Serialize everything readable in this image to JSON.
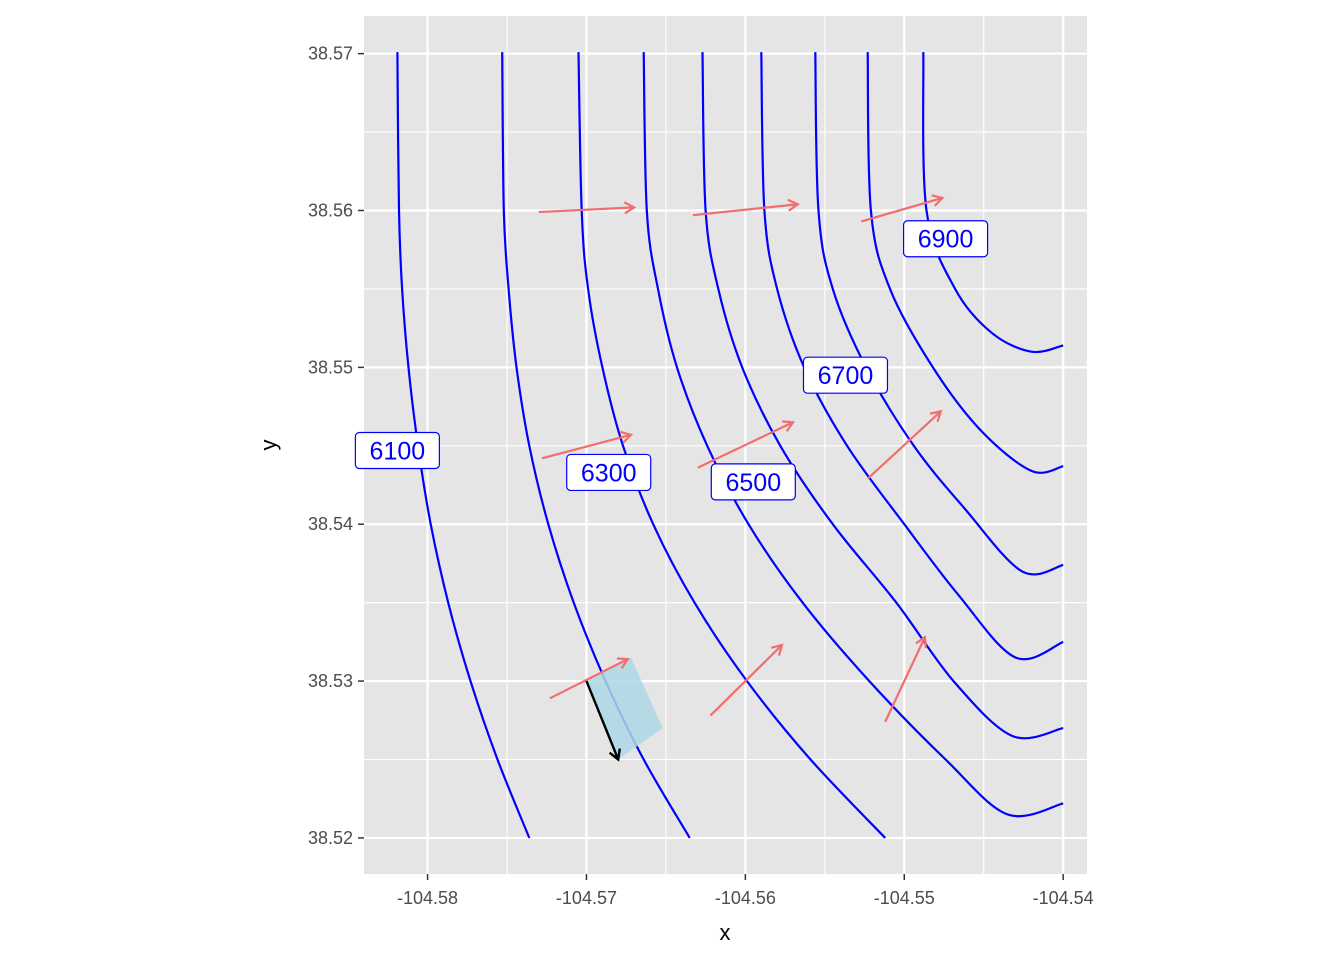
{
  "chart_data": {
    "type": "contour",
    "xlabel": "x",
    "ylabel": "y",
    "xlim": [
      -104.584,
      -104.5385
    ],
    "ylim": [
      38.5177,
      38.5724
    ],
    "x_ticks": [
      -104.58,
      -104.57,
      -104.56,
      -104.55,
      -104.54
    ],
    "x_tick_labels": [
      "-104.58",
      "-104.57",
      "-104.56",
      "-104.55",
      "-104.54"
    ],
    "y_ticks": [
      38.52,
      38.53,
      38.54,
      38.55,
      38.56,
      38.57
    ],
    "y_tick_labels": [
      "38.52",
      "38.53",
      "38.54",
      "38.55",
      "38.56",
      "38.57"
    ],
    "grid": true,
    "colors": {
      "panel": "#e5e5e5",
      "grid": "#ffffff",
      "contour": "#0000ff",
      "gradient_arrow": "#f26e6e",
      "highlight_polygon": "#add8e6",
      "path_arrow": "#000000"
    },
    "contours": [
      {
        "level": "6100",
        "points": [
          [
            -104.5819,
            38.5701
          ],
          [
            -104.5818,
            38.56
          ],
          [
            -104.5816,
            38.555
          ],
          [
            -104.5812,
            38.55
          ],
          [
            -104.5806,
            38.545
          ],
          [
            -104.5798,
            38.54
          ],
          [
            -104.5787,
            38.535
          ],
          [
            -104.5773,
            38.53
          ],
          [
            -104.5756,
            38.525
          ],
          [
            -104.5736,
            38.52
          ]
        ]
      },
      {
        "level": "",
        "points": [
          [
            -104.5753,
            38.5701
          ],
          [
            -104.5752,
            38.56
          ],
          [
            -104.5749,
            38.555
          ],
          [
            -104.5744,
            38.55
          ],
          [
            -104.5736,
            38.545
          ],
          [
            -104.5724,
            38.54
          ],
          [
            -104.5708,
            38.535
          ],
          [
            -104.5688,
            38.53
          ],
          [
            -104.5664,
            38.525
          ],
          [
            -104.5635,
            38.52
          ]
        ]
      },
      {
        "level": "6300",
        "points": [
          [
            -104.5705,
            38.5701
          ],
          [
            -104.5703,
            38.56
          ],
          [
            -104.5699,
            38.555
          ],
          [
            -104.569,
            38.55
          ],
          [
            -104.5677,
            38.545
          ],
          [
            -104.5658,
            38.54
          ],
          [
            -104.5632,
            38.535
          ],
          [
            -104.5599,
            38.53
          ],
          [
            -104.5559,
            38.525
          ],
          [
            -104.5512,
            38.52
          ]
        ]
      },
      {
        "level": "",
        "points": [
          [
            -104.5664,
            38.5701
          ],
          [
            -104.5662,
            38.56
          ],
          [
            -104.5655,
            38.555
          ],
          [
            -104.5643,
            38.55
          ],
          [
            -104.5624,
            38.545
          ],
          [
            -104.5598,
            38.54
          ],
          [
            -104.5564,
            38.535
          ],
          [
            -104.5522,
            38.53
          ],
          [
            -104.5474,
            38.525
          ],
          [
            -104.5435,
            38.5215
          ],
          [
            -104.54,
            38.5222
          ]
        ]
      },
      {
        "level": "6500",
        "points": [
          [
            -104.5627,
            38.5701
          ],
          [
            -104.5625,
            38.56
          ],
          [
            -104.5617,
            38.555
          ],
          [
            -104.5602,
            38.55
          ],
          [
            -104.5578,
            38.545
          ],
          [
            -104.5545,
            38.54
          ],
          [
            -104.5505,
            38.535
          ],
          [
            -104.5469,
            38.53
          ],
          [
            -104.5432,
            38.5265
          ],
          [
            -104.54,
            38.527
          ]
        ]
      },
      {
        "level": "",
        "points": [
          [
            -104.559,
            38.5701
          ],
          [
            -104.5588,
            38.56
          ],
          [
            -104.558,
            38.555
          ],
          [
            -104.5563,
            38.55
          ],
          [
            -104.5536,
            38.545
          ],
          [
            -104.55,
            38.54
          ],
          [
            -104.5466,
            38.5355
          ],
          [
            -104.543,
            38.5315
          ],
          [
            -104.54,
            38.5325
          ]
        ]
      },
      {
        "level": "6700",
        "points": [
          [
            -104.5556,
            38.5701
          ],
          [
            -104.5554,
            38.56
          ],
          [
            -104.5545,
            38.555
          ],
          [
            -104.5524,
            38.55
          ],
          [
            -104.5494,
            38.545
          ],
          [
            -104.5462,
            38.541
          ],
          [
            -104.5426,
            38.537
          ],
          [
            -104.54,
            38.5374
          ]
        ]
      },
      {
        "level": "",
        "points": [
          [
            -104.5523,
            38.5701
          ],
          [
            -104.5521,
            38.56
          ],
          [
            -104.5509,
            38.555
          ],
          [
            -104.5482,
            38.55
          ],
          [
            -104.5452,
            38.546
          ],
          [
            -104.542,
            38.5434
          ],
          [
            -104.54,
            38.5437
          ]
        ]
      },
      {
        "level": "6900",
        "points": [
          [
            -104.5488,
            38.5701
          ],
          [
            -104.5486,
            38.56
          ],
          [
            -104.5468,
            38.555
          ],
          [
            -104.5445,
            38.5522
          ],
          [
            -104.542,
            38.551
          ],
          [
            -104.54,
            38.5514
          ]
        ]
      }
    ],
    "contour_labels": [
      {
        "text": "6100",
        "x": -104.5819,
        "y": 38.5447
      },
      {
        "text": "6300",
        "x": -104.5686,
        "y": 38.5433
      },
      {
        "text": "6500",
        "x": -104.5595,
        "y": 38.5427
      },
      {
        "text": "6700",
        "x": -104.5537,
        "y": 38.5495
      },
      {
        "text": "6900",
        "x": -104.5474,
        "y": 38.5582
      }
    ],
    "gradient_arrows": [
      {
        "x": -104.573,
        "y": 38.5599,
        "xend": -104.567,
        "yend": 38.5602
      },
      {
        "x": -104.5633,
        "y": 38.5597,
        "xend": -104.5567,
        "yend": 38.5604
      },
      {
        "x": -104.5527,
        "y": 38.5593,
        "xend": -104.5476,
        "yend": 38.5608
      },
      {
        "x": -104.5728,
        "y": 38.5442,
        "xend": -104.5672,
        "yend": 38.5457
      },
      {
        "x": -104.563,
        "y": 38.5436,
        "xend": -104.557,
        "yend": 38.5465
      },
      {
        "x": -104.5523,
        "y": 38.5429,
        "xend": -104.5477,
        "yend": 38.5472
      },
      {
        "x": -104.5723,
        "y": 38.5289,
        "xend": -104.5674,
        "yend": 38.5314
      },
      {
        "x": -104.5622,
        "y": 38.5278,
        "xend": -104.5577,
        "yend": 38.5323
      },
      {
        "x": -104.5512,
        "y": 38.5274,
        "xend": -104.5487,
        "yend": 38.5328
      }
    ],
    "highlight_polygon": [
      [
        -104.57,
        38.53
      ],
      [
        -104.5672,
        38.5315
      ],
      [
        -104.5652,
        38.527
      ],
      [
        -104.568,
        38.525
      ]
    ],
    "path_arrow": {
      "x": -104.57,
      "y": 38.53,
      "xend": -104.568,
      "yend": 38.525
    }
  }
}
